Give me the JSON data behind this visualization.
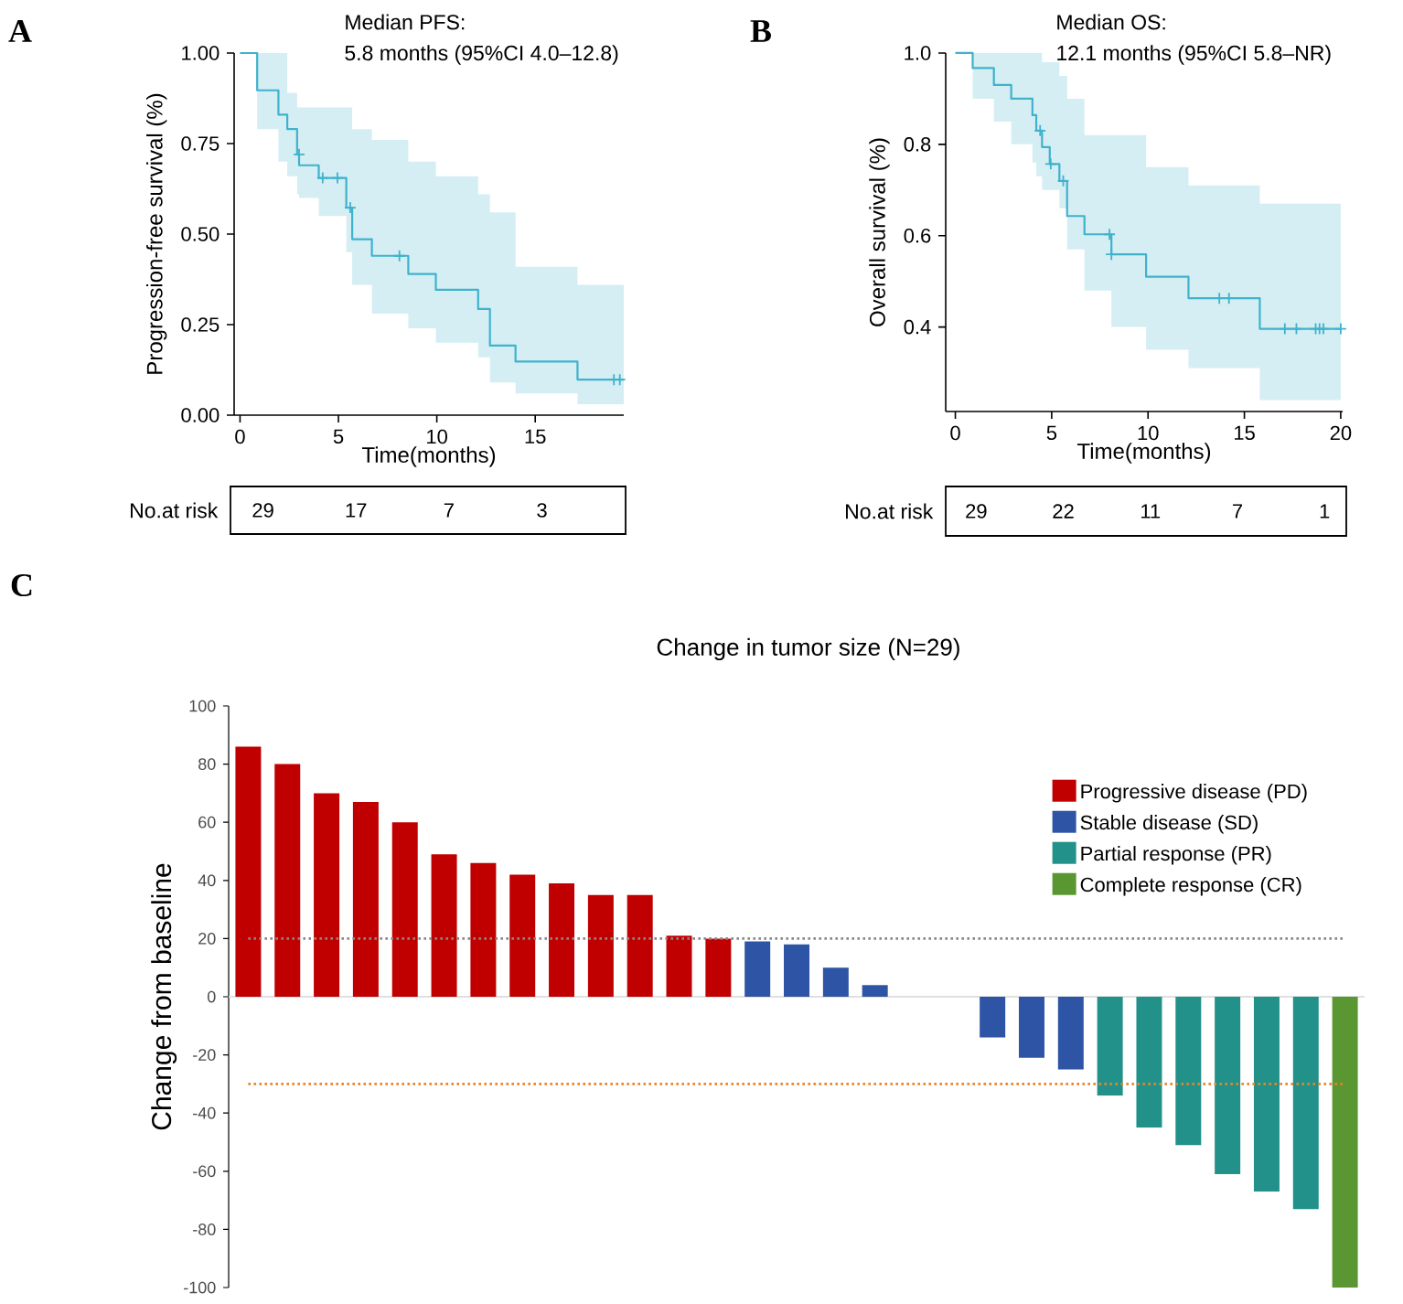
{
  "chart_data": [
    {
      "type": "step",
      "title": "Median PFS:",
      "subtitle": "5.8 months (95%CI 4.0–12.8)",
      "xlabel": "Time(months)",
      "ylabel": "Progression-free survival (%)",
      "annotations": [
        "A"
      ],
      "xlim": [
        -0.3,
        19.5
      ],
      "ylim": [
        0,
        1.0
      ],
      "xticks": [
        0,
        5,
        10,
        15
      ],
      "yticks": [
        {
          "value": 0,
          "label": "0.00"
        },
        {
          "value": 0.25,
          "label": "0.25"
        },
        {
          "value": 0.5,
          "label": "0.50"
        },
        {
          "value": 0.75,
          "label": "0.75"
        },
        {
          "value": 1,
          "label": "1.00"
        }
      ],
      "series": [
        {
          "type": "step",
          "color": "#3fb2cc",
          "x": [
            0,
            0.87,
            1.95,
            2.4,
            2.9,
            3.0,
            4.0,
            5.4,
            5.7,
            6.7,
            8.55,
            9.95,
            12.1,
            12.7,
            14.0,
            17.15,
            19.5
          ],
          "values": [
            1.0,
            0.897,
            0.83,
            0.79,
            0.72,
            0.69,
            0.655,
            0.573,
            0.486,
            0.44,
            0.39,
            0.346,
            0.293,
            0.192,
            0.148,
            0.098,
            0.098
          ],
          "upper": [
            1.0,
            1.0,
            1.0,
            0.89,
            0.85,
            0.85,
            0.85,
            0.85,
            0.79,
            0.76,
            0.7,
            0.66,
            0.61,
            0.56,
            0.41,
            0.36,
            0.36
          ],
          "lower": [
            1.0,
            0.79,
            0.7,
            0.66,
            0.61,
            0.6,
            0.55,
            0.45,
            0.36,
            0.28,
            0.24,
            0.2,
            0.16,
            0.09,
            0.06,
            0.03,
            0.03
          ]
        },
        {
          "type": "scatter",
          "color": "#3fb2cc",
          "marker": "cross",
          "x": [
            3.0,
            4.2,
            4.95,
            5.6,
            8.1,
            19.0,
            19.3
          ],
          "values": [
            0.72,
            0.655,
            0.655,
            0.573,
            0.44,
            0.098,
            0.098
          ]
        }
      ]
    },
    {
      "type": "other",
      "ylabel": "No.at risk",
      "categories": [
        null,
        null,
        null,
        null
      ],
      "values": [
        29,
        17,
        7,
        3
      ],
      "data_labels": true
    },
    {
      "type": "step",
      "title": "Median OS:",
      "subtitle": "12.1 months (95%CI 5.8–NR)",
      "xlabel": "Time(months)",
      "ylabel": "Overall survival (%)",
      "annotations": [
        "B"
      ],
      "xlim": [
        -0.5,
        20.1
      ],
      "ylim": [
        0.215,
        1.0
      ],
      "xticks": [
        0,
        5,
        10,
        15,
        20
      ],
      "yticks": [
        0.4,
        0.6,
        0.8,
        {
          "value": 1,
          "label": "1.0"
        }
      ],
      "series": [
        {
          "type": "step",
          "color": "#3fb2cc",
          "x": [
            0,
            0.9,
            2.0,
            2.9,
            4.0,
            4.2,
            4.5,
            4.9,
            5.4,
            5.8,
            6.7,
            8.1,
            9.9,
            12.1,
            15.8,
            20.0
          ],
          "values": [
            1.0,
            0.967,
            0.93,
            0.9,
            0.864,
            0.83,
            0.794,
            0.757,
            0.72,
            0.643,
            0.603,
            0.559,
            0.51,
            0.463,
            0.396,
            0.396
          ],
          "upper": [
            1.0,
            1.0,
            1.0,
            1.0,
            1.0,
            1.0,
            0.98,
            0.98,
            0.95,
            0.9,
            0.82,
            0.82,
            0.75,
            0.71,
            0.67,
            0.67
          ],
          "lower": [
            1.0,
            0.9,
            0.85,
            0.8,
            0.76,
            0.73,
            0.7,
            0.7,
            0.66,
            0.57,
            0.48,
            0.4,
            0.35,
            0.31,
            0.24,
            0.24
          ]
        },
        {
          "type": "scatter",
          "color": "#3fb2cc",
          "marker": "cross",
          "x": [
            4.4,
            4.95,
            5.6,
            8.0,
            8.1,
            13.7,
            14.2,
            17.1,
            17.7,
            18.7,
            18.9,
            19.1,
            20.0
          ],
          "values": [
            0.83,
            0.757,
            0.72,
            0.603,
            0.559,
            0.463,
            0.463,
            0.396,
            0.396,
            0.396,
            0.396,
            0.396,
            0.396
          ]
        }
      ]
    },
    {
      "type": "other",
      "ylabel": "No.at risk",
      "categories": [
        null,
        null,
        null,
        null,
        null
      ],
      "values": [
        29,
        22,
        11,
        7,
        1
      ],
      "data_labels": true
    },
    {
      "type": "bar",
      "title": "Change in tumor size (N=29)",
      "ylabel": "Change from baseline",
      "annotations": [
        "C"
      ],
      "ylim": [
        -100,
        100
      ],
      "yticks": [
        -100,
        -80,
        -60,
        -40,
        -20,
        0,
        20,
        40,
        60,
        80,
        100
      ],
      "legend": "top right",
      "tick_labels": "y",
      "categories": [
        null,
        null,
        null,
        null,
        null,
        null,
        null,
        null,
        null,
        null,
        null,
        null,
        null,
        null,
        null,
        null,
        null,
        null,
        null,
        null,
        null,
        null,
        null,
        null,
        null,
        null,
        null,
        null,
        null
      ],
      "series": [
        {
          "name": "Progressive disease (PD)",
          "color": "#c00000",
          "values": [
            86,
            80,
            70,
            67,
            60,
            49,
            46,
            42,
            39,
            35,
            35,
            21,
            20,
            null,
            null,
            null,
            null,
            null,
            null,
            null,
            null,
            null,
            null,
            null,
            null,
            null,
            null,
            null,
            null
          ]
        },
        {
          "name": "Stable disease (SD)",
          "color": "#2e55a5",
          "values": [
            null,
            null,
            null,
            null,
            null,
            null,
            null,
            null,
            null,
            null,
            null,
            null,
            null,
            19,
            18,
            10,
            4,
            null,
            null,
            -14,
            -21,
            -25,
            null,
            null,
            null,
            null,
            null,
            null,
            null
          ]
        },
        {
          "name": "Partial response (PR)",
          "color": "#22918a",
          "values": [
            null,
            null,
            null,
            null,
            null,
            null,
            null,
            null,
            null,
            null,
            null,
            null,
            null,
            null,
            null,
            null,
            null,
            null,
            null,
            null,
            null,
            null,
            -34,
            -45,
            -51,
            -61,
            -67,
            -73,
            null
          ]
        },
        {
          "name": "Complete response (CR)",
          "color": "#5a9632",
          "values": [
            null,
            null,
            null,
            null,
            null,
            null,
            null,
            null,
            null,
            null,
            null,
            null,
            null,
            null,
            null,
            null,
            null,
            null,
            null,
            null,
            null,
            null,
            null,
            null,
            null,
            null,
            null,
            null,
            -100
          ]
        }
      ],
      "ref_lines": [
        {
          "axis": "y",
          "value": 20,
          "color": "#888888",
          "line_style": "dotted"
        },
        {
          "axis": "y",
          "value": -30,
          "color": "#f08224",
          "line_style": "dotted"
        }
      ]
    }
  ]
}
